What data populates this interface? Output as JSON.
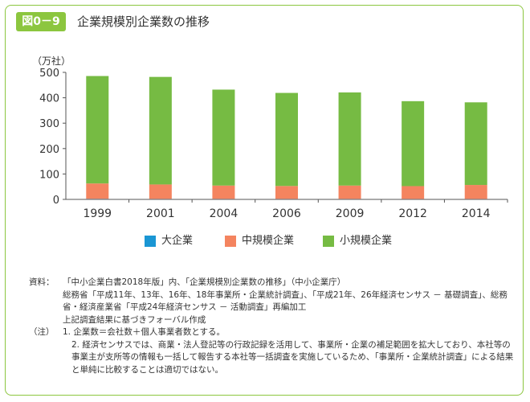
{
  "figure": {
    "badge": "図0－9",
    "title": "企業規模別企業数の推移"
  },
  "chart_data": {
    "type": "bar",
    "stacked": true,
    "unit_label": "（万社）",
    "categories": [
      "1999",
      "2001",
      "2004",
      "2006",
      "2009",
      "2012",
      "2014"
    ],
    "ylim": [
      0,
      500
    ],
    "yticks": [
      0,
      100,
      200,
      300,
      400,
      500
    ],
    "grid": false,
    "legend_position": "bottom",
    "series": [
      {
        "name": "大企業",
        "color": "#1a96d4",
        "values": [
          1.4,
          1.2,
          1.2,
          1.2,
          1.2,
          1.1,
          1.1
        ]
      },
      {
        "name": "中規模企業",
        "color": "#f4845f",
        "values": [
          61.3,
          57.6,
          53.3,
          51.6,
          53.3,
          51.2,
          55.7
        ]
      },
      {
        "name": "小規模企業",
        "color": "#76bb43",
        "values": [
          422.9,
          423.3,
          377.6,
          366.3,
          366.5,
          334.3,
          325.2
        ]
      }
    ]
  },
  "notes": {
    "source_key": "資料：",
    "source_lines": [
      "「中小企業白書2018年版」内、「企業規模別企業数の推移」（中小企業庁）",
      "総務省「平成11年、13年、16年、18年事業所・企業統計調査」、「平成21年、26年経済センサス － 基礎調査」、総務省・経済産業省「平成24年経済センサス － 活動調査」再編加工",
      "上記調査結果に基づきフォーバル作成"
    ],
    "notes_key": "（注）",
    "note1": "1. 企業数＝会社数＋個人事業者数とする。",
    "note2": "2. 経済センサスでは、商業・法人登記等の行政記録を活用して、事業所・企業の補足範囲を拡大しており、本社等の事業主が支所等の情報も一括して報告する本社等一括調査を実施しているため、「事業所・企業統計調査」による結果と単純に比較することは適切ではない。"
  }
}
